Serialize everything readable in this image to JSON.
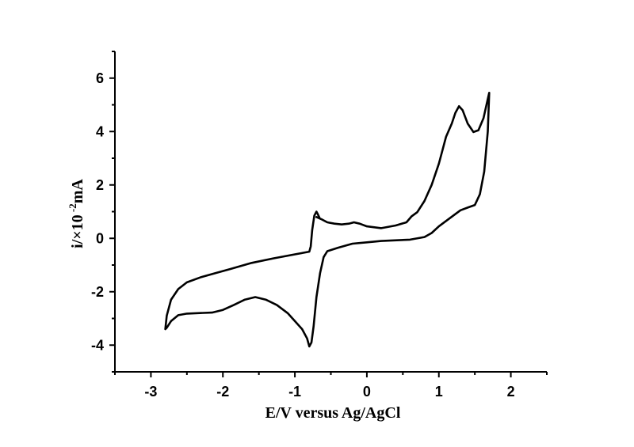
{
  "chart_data": {
    "type": "line",
    "xlabel": "E/V versus Ag/AgCl",
    "ylabel_parts": {
      "base": "i/×10",
      "exponent": " -2",
      "unit": "mA"
    },
    "xlim": [
      -3.5,
      2.5
    ],
    "ylim": [
      -5,
      7
    ],
    "xticks": [
      -3,
      -2,
      -1,
      0,
      1,
      2
    ],
    "yticks": [
      -4,
      -2,
      0,
      2,
      4,
      6
    ],
    "grid": false,
    "series": [
      {
        "color": "#000000",
        "points": [
          [
            -0.7,
            0.8
          ],
          [
            -0.62,
            0.7
          ],
          [
            -0.55,
            0.6
          ],
          [
            -0.45,
            0.55
          ],
          [
            -0.35,
            0.52
          ],
          [
            -0.25,
            0.55
          ],
          [
            -0.18,
            0.6
          ],
          [
            -0.1,
            0.55
          ],
          [
            0.0,
            0.45
          ],
          [
            0.2,
            0.38
          ],
          [
            0.4,
            0.48
          ],
          [
            0.55,
            0.6
          ],
          [
            0.62,
            0.82
          ],
          [
            0.7,
            0.98
          ],
          [
            0.8,
            1.4
          ],
          [
            0.9,
            2.0
          ],
          [
            1.0,
            2.8
          ],
          [
            1.05,
            3.3
          ],
          [
            1.1,
            3.8
          ],
          [
            1.18,
            4.3
          ],
          [
            1.23,
            4.7
          ],
          [
            1.28,
            4.95
          ],
          [
            1.33,
            4.8
          ],
          [
            1.4,
            4.3
          ],
          [
            1.48,
            3.98
          ],
          [
            1.55,
            4.05
          ],
          [
            1.62,
            4.5
          ],
          [
            1.67,
            5.1
          ],
          [
            1.7,
            5.45
          ],
          [
            1.68,
            4.0
          ],
          [
            1.63,
            2.5
          ],
          [
            1.57,
            1.65
          ],
          [
            1.5,
            1.25
          ],
          [
            1.4,
            1.15
          ],
          [
            1.3,
            1.05
          ],
          [
            1.2,
            0.85
          ],
          [
            1.0,
            0.45
          ],
          [
            0.9,
            0.2
          ],
          [
            0.8,
            0.05
          ],
          [
            0.6,
            -0.05
          ],
          [
            0.2,
            -0.1
          ],
          [
            0.0,
            -0.15
          ],
          [
            -0.2,
            -0.2
          ],
          [
            -0.4,
            -0.35
          ],
          [
            -0.55,
            -0.48
          ],
          [
            -0.6,
            -0.7
          ],
          [
            -0.65,
            -1.3
          ],
          [
            -0.7,
            -2.2
          ],
          [
            -0.74,
            -3.3
          ],
          [
            -0.77,
            -3.9
          ],
          [
            -0.8,
            -4.05
          ],
          [
            -0.83,
            -3.75
          ],
          [
            -0.9,
            -3.4
          ],
          [
            -1.0,
            -3.1
          ],
          [
            -1.1,
            -2.8
          ],
          [
            -1.25,
            -2.5
          ],
          [
            -1.4,
            -2.3
          ],
          [
            -1.55,
            -2.2
          ],
          [
            -1.7,
            -2.3
          ],
          [
            -1.85,
            -2.5
          ],
          [
            -2.0,
            -2.68
          ],
          [
            -2.15,
            -2.78
          ],
          [
            -2.35,
            -2.8
          ],
          [
            -2.5,
            -2.82
          ],
          [
            -2.62,
            -2.88
          ],
          [
            -2.72,
            -3.1
          ],
          [
            -2.78,
            -3.35
          ],
          [
            -2.8,
            -3.4
          ],
          [
            -2.78,
            -2.9
          ],
          [
            -2.72,
            -2.3
          ],
          [
            -2.62,
            -1.9
          ],
          [
            -2.5,
            -1.65
          ],
          [
            -2.3,
            -1.45
          ],
          [
            -2.1,
            -1.3
          ],
          [
            -1.9,
            -1.15
          ],
          [
            -1.6,
            -0.92
          ],
          [
            -1.3,
            -0.75
          ],
          [
            -1.0,
            -0.6
          ],
          [
            -0.8,
            -0.5
          ],
          [
            -0.78,
            -0.3
          ],
          [
            -0.76,
            0.3
          ],
          [
            -0.73,
            0.85
          ],
          [
            -0.7,
            1.0
          ],
          [
            -0.68,
            0.9
          ],
          [
            -0.66,
            0.78
          ]
        ]
      }
    ]
  }
}
